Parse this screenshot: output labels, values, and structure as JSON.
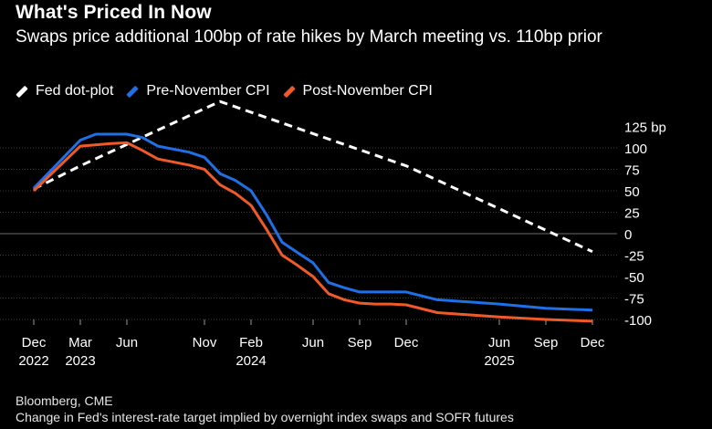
{
  "title": "What's Priced In Now",
  "subtitle": "Swaps price additional 100bp of rate hikes by March meeting vs. 110bp prior",
  "legend": [
    {
      "label": "Fed dot-plot",
      "color": "#ffffff"
    },
    {
      "label": "Pre-November CPI",
      "color": "#1f6fe6"
    },
    {
      "label": "Post-November CPI",
      "color": "#f05a28"
    }
  ],
  "footer": {
    "source": "Bloomberg, CME",
    "note": "Change in Fed's interest-rate target implied by overnight index swaps and SOFR futures"
  },
  "chart_data": {
    "type": "line",
    "title": "What's Priced In Now",
    "ylabel": "bp",
    "ylim": [
      -100,
      125
    ],
    "yticks": [
      125,
      100,
      75,
      50,
      25,
      0,
      -25,
      -50,
      -75,
      -100
    ],
    "y_unit_label": "125 bp",
    "x_range": [
      "2022-12",
      "2025-12"
    ],
    "xticks": [
      {
        "month": 0,
        "label": "Dec",
        "year": "2022"
      },
      {
        "month": 3,
        "label": "Mar",
        "year": "2023"
      },
      {
        "month": 6,
        "label": "Jun",
        "year": ""
      },
      {
        "month": 11,
        "label": "Nov",
        "year": ""
      },
      {
        "month": 14,
        "label": "Feb",
        "year": "2024"
      },
      {
        "month": 18,
        "label": "Jun",
        "year": ""
      },
      {
        "month": 21,
        "label": "Sep",
        "year": ""
      },
      {
        "month": 24,
        "label": "Dec",
        "year": ""
      },
      {
        "month": 30,
        "label": "Jun",
        "year": "2025"
      },
      {
        "month": 33,
        "label": "Sep",
        "year": ""
      },
      {
        "month": 36,
        "label": "Dec",
        "year": ""
      }
    ],
    "series": [
      {
        "name": "Fed dot-plot",
        "color": "#ffffff",
        "dashed": true,
        "points": [
          [
            0,
            52
          ],
          [
            3,
            79
          ],
          [
            12,
            154
          ],
          [
            24,
            79
          ],
          [
            36,
            -21
          ]
        ]
      },
      {
        "name": "Pre-November CPI",
        "color": "#1f6fe6",
        "dashed": false,
        "points": [
          [
            0,
            53
          ],
          [
            3,
            109
          ],
          [
            4,
            116
          ],
          [
            6,
            116
          ],
          [
            7,
            112
          ],
          [
            8,
            102
          ],
          [
            10,
            95
          ],
          [
            11,
            89
          ],
          [
            12,
            70
          ],
          [
            13,
            62
          ],
          [
            14,
            50
          ],
          [
            15,
            22
          ],
          [
            16,
            -10
          ],
          [
            17,
            -22
          ],
          [
            18,
            -34
          ],
          [
            19,
            -57
          ],
          [
            20,
            -63
          ],
          [
            21,
            -68
          ],
          [
            22,
            -68
          ],
          [
            23,
            -68
          ],
          [
            24,
            -68
          ],
          [
            26,
            -77
          ],
          [
            30,
            -82
          ],
          [
            33,
            -87
          ],
          [
            36,
            -89
          ]
        ]
      },
      {
        "name": "Post-November CPI",
        "color": "#f05a28",
        "dashed": false,
        "points": [
          [
            0,
            50
          ],
          [
            3,
            102
          ],
          [
            5,
            105
          ],
          [
            6,
            106
          ],
          [
            7,
            97
          ],
          [
            8,
            87
          ],
          [
            10,
            80
          ],
          [
            11,
            75
          ],
          [
            12,
            57
          ],
          [
            13,
            47
          ],
          [
            14,
            33
          ],
          [
            15,
            5
          ],
          [
            16,
            -25
          ],
          [
            17,
            -37
          ],
          [
            18,
            -50
          ],
          [
            19,
            -70
          ],
          [
            20,
            -77
          ],
          [
            21,
            -81
          ],
          [
            22,
            -82
          ],
          [
            23,
            -82
          ],
          [
            24,
            -83
          ],
          [
            26,
            -92
          ],
          [
            30,
            -97
          ],
          [
            33,
            -100
          ],
          [
            36,
            -102
          ]
        ]
      }
    ]
  }
}
